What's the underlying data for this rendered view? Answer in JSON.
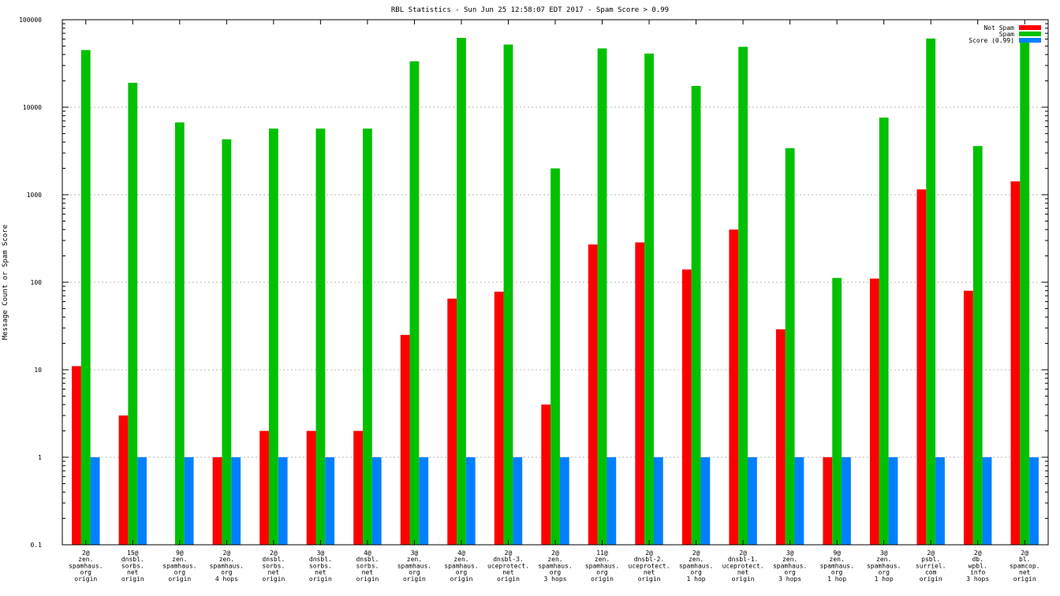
{
  "chart_data": {
    "type": "bar",
    "title": "RBL Statistics - Sun Jun 25 12:58:07 EDT 2017 - Spam Score > 0.99",
    "ylabel": "Message Count or Spam Score",
    "xlabel": "",
    "yscale": "log",
    "ylim": [
      0.1,
      100000
    ],
    "yticks": [
      {
        "value": 0.1,
        "label": "0.1"
      },
      {
        "value": 1,
        "label": "1"
      },
      {
        "value": 10,
        "label": "10"
      },
      {
        "value": 100,
        "label": "100"
      },
      {
        "value": 1000,
        "label": "1000"
      },
      {
        "value": 10000,
        "label": "10000"
      },
      {
        "value": 100000,
        "label": "100000"
      }
    ],
    "grid": true,
    "legend_position": "top-right",
    "categories": [
      [
        "2@",
        "zen.",
        "spamhaus.",
        "org",
        "origin"
      ],
      [
        "15@",
        "dnsbl.",
        "sorbs.",
        "net",
        "origin"
      ],
      [
        "9@",
        "zen.",
        "spamhaus.",
        "org",
        "origin"
      ],
      [
        "2@",
        "zen.",
        "spamhaus.",
        "org",
        "4 hops"
      ],
      [
        "2@",
        "dnsbl.",
        "sorbs.",
        "net",
        "origin"
      ],
      [
        "3@",
        "dnsbl.",
        "sorbs.",
        "net",
        "origin"
      ],
      [
        "4@",
        "dnsbl.",
        "sorbs.",
        "net",
        "origin"
      ],
      [
        "3@",
        "zen.",
        "spamhaus.",
        "org",
        "origin"
      ],
      [
        "4@",
        "zen.",
        "spamhaus.",
        "org",
        "origin"
      ],
      [
        "2@",
        "dnsbl-3.",
        "uceprotect.",
        "net",
        "origin"
      ],
      [
        "2@",
        "zen.",
        "spamhaus.",
        "org",
        "3 hops"
      ],
      [
        "11@",
        "zen.",
        "spamhaus.",
        "org",
        "origin"
      ],
      [
        "2@",
        "dnsbl-2.",
        "uceprotect.",
        "net",
        "origin"
      ],
      [
        "2@",
        "zen.",
        "spamhaus.",
        "org",
        "1 hop"
      ],
      [
        "2@",
        "dnsbl-1.",
        "uceprotect.",
        "net",
        "origin"
      ],
      [
        "3@",
        "zen.",
        "spamhaus.",
        "org",
        "3 hops"
      ],
      [
        "9@",
        "zen.",
        "spamhaus.",
        "org",
        "1 hop"
      ],
      [
        "3@",
        "zen.",
        "spamhaus.",
        "org",
        "1 hop"
      ],
      [
        "2@",
        "psbl.",
        "surriel.",
        "com",
        "origin"
      ],
      [
        "2@",
        "db.",
        "wpbl.",
        "info",
        "3 hops"
      ],
      [
        "2@",
        "bl.",
        "spamcop.",
        "net",
        "origin"
      ]
    ],
    "series": [
      {
        "name": "Not Spam",
        "color": "#ff0000",
        "values": [
          11,
          3,
          null,
          1,
          2,
          2,
          2,
          25,
          65,
          78,
          4,
          270,
          285,
          140,
          400,
          29,
          1,
          110,
          1150,
          80,
          1420
        ]
      },
      {
        "name": "Spam",
        "color": "#00c000",
        "values": [
          45000,
          19000,
          6700,
          4300,
          5700,
          5700,
          5700,
          33500,
          62000,
          52000,
          2000,
          47000,
          41000,
          17500,
          49000,
          3400,
          112,
          7600,
          61000,
          3600,
          58000
        ]
      },
      {
        "name": "Score (0.99)",
        "color": "#0080ff",
        "values": [
          1,
          1,
          1,
          1,
          1,
          1,
          1,
          1,
          1,
          1,
          1,
          1,
          1,
          1,
          1,
          1,
          1,
          1,
          1,
          1,
          1
        ]
      }
    ]
  }
}
